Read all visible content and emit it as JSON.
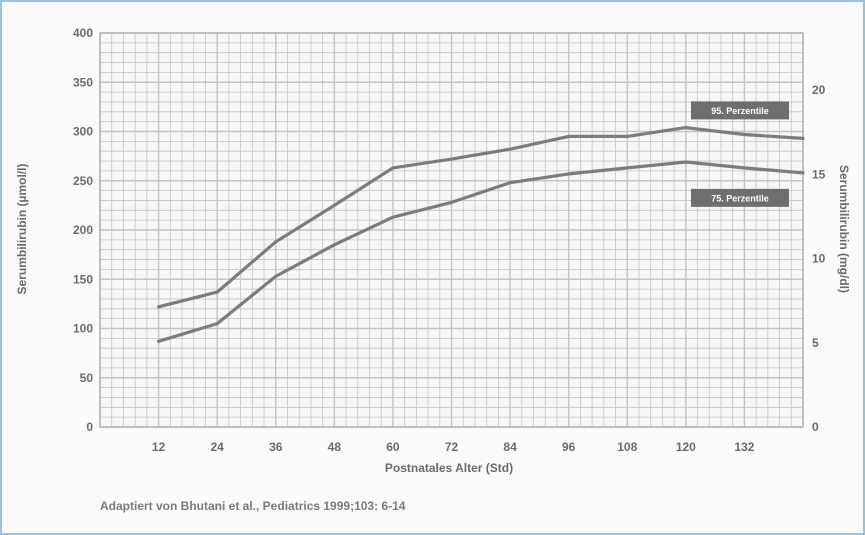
{
  "chart_data": {
    "type": "line",
    "title": "",
    "xlabel": "Postnatales Alter (Std)",
    "ylabel_left": "Serumbilirubin (µmol/l)",
    "ylabel_right": "Serumbilirubin (mg/dl)",
    "xlim": [
      0,
      144
    ],
    "ylim_left": [
      0,
      400
    ],
    "ylim_right": [
      0,
      23.4
    ],
    "x_ticks": [
      "12",
      "24",
      "36",
      "48",
      "60",
      "72",
      "84",
      "96",
      "108",
      "120",
      "132"
    ],
    "y_ticks_left": [
      "0",
      "50",
      "100",
      "150",
      "200",
      "250",
      "300",
      "350",
      "400"
    ],
    "y_ticks_right": [
      "0",
      "5",
      "10",
      "15",
      "20"
    ],
    "grid": true,
    "legend": "inline labels",
    "series": [
      {
        "name": "95. Perzentile",
        "x": [
          12,
          24,
          36,
          48,
          60,
          72,
          84,
          96,
          108,
          120,
          132,
          144
        ],
        "values": [
          122,
          137,
          188,
          225,
          263,
          272,
          282,
          295,
          295,
          304,
          297,
          293
        ]
      },
      {
        "name": "75. Perzentile",
        "x": [
          12,
          24,
          36,
          48,
          60,
          72,
          84,
          96,
          108,
          120,
          132,
          144
        ],
        "values": [
          87,
          105,
          153,
          185,
          213,
          228,
          248,
          257,
          263,
          269,
          263,
          258
        ]
      }
    ]
  },
  "source_note": "Adaptiert von Bhutani et al., Pediatrics 1999;103: 6-14",
  "colors": {
    "grid": "#c4c4c4",
    "line": "#7c7c7c",
    "label_box": "#6e6e6e",
    "axis_text": "#6b6b6b",
    "frame": "#9cc2dc"
  }
}
